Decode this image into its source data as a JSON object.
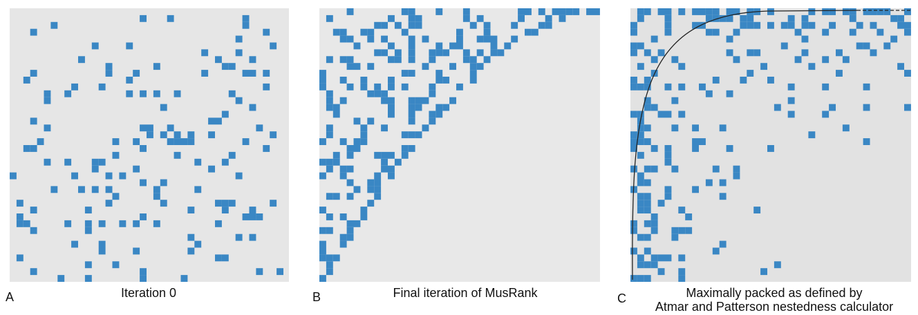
{
  "panels": [
    {
      "letter": "A",
      "caption": "Iteration 0"
    },
    {
      "letter": "B",
      "caption": "Final iteration of MusRank"
    },
    {
      "letter": "C",
      "caption_lines": [
        "Maximally packed as defined by",
        "Atmar and Patterson nestedness calculator"
      ]
    }
  ]
}
